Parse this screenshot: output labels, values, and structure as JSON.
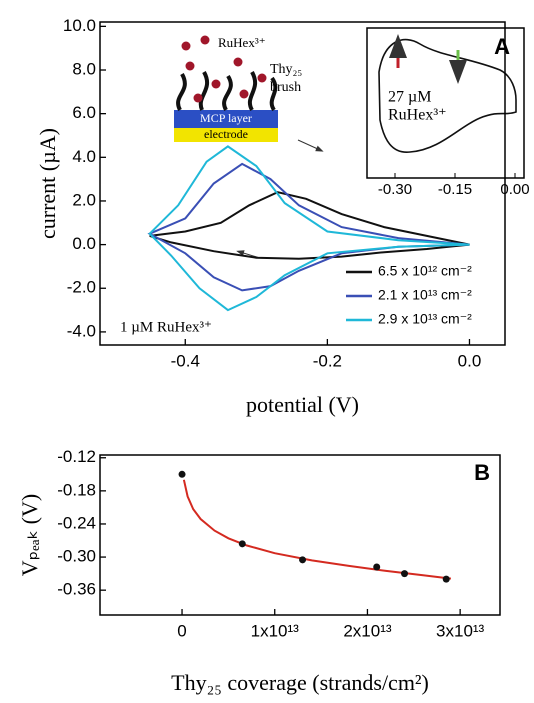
{
  "chart_data": [
    {
      "type": "line",
      "xlabel": "potential (V)",
      "ylabel": "current (µA)",
      "xlim": [
        -0.52,
        0.05
      ],
      "ylim": [
        -4.6,
        10.2
      ],
      "xticks": [
        {
          "value": -0.4,
          "label": "-0.4"
        },
        {
          "value": -0.2,
          "label": "-0.2"
        },
        {
          "value": 0,
          "label": "0.0"
        }
      ],
      "yticks": [
        {
          "value": -4,
          "label": "-4.0"
        },
        {
          "value": -2,
          "label": "-2.0"
        },
        {
          "value": 0,
          "label": "0.0"
        },
        {
          "value": 2,
          "label": "2.0"
        },
        {
          "value": 4,
          "label": "4.0"
        },
        {
          "value": 6,
          "label": "6.0"
        },
        {
          "value": 8,
          "label": "8.0"
        },
        {
          "value": 10,
          "label": "10.0"
        }
      ],
      "series": [
        {
          "name": "6.5 x 10¹² cm⁻²",
          "color": "#111111",
          "x": [
            -0.45,
            -0.4,
            -0.35,
            -0.31,
            -0.27,
            -0.23,
            -0.18,
            -0.12,
            -0.06,
            0.0,
            -0.06,
            -0.12,
            -0.18,
            -0.24,
            -0.3,
            -0.36,
            -0.42,
            -0.45
          ],
          "y": [
            0.4,
            0.6,
            1.0,
            1.8,
            2.4,
            2.1,
            1.4,
            0.8,
            0.4,
            0.0,
            -0.2,
            -0.35,
            -0.55,
            -0.65,
            -0.6,
            -0.3,
            0.1,
            0.4
          ]
        },
        {
          "name": "2.1 x 10¹³ cm⁻²",
          "color": "#3a4fb5",
          "x": [
            -0.45,
            -0.4,
            -0.36,
            -0.32,
            -0.28,
            -0.24,
            -0.18,
            -0.1,
            0.0,
            -0.1,
            -0.18,
            -0.24,
            -0.28,
            -0.32,
            -0.36,
            -0.4,
            -0.45
          ],
          "y": [
            0.5,
            1.2,
            2.8,
            3.7,
            3.0,
            1.8,
            0.8,
            0.3,
            0.0,
            -0.1,
            -0.4,
            -1.2,
            -1.9,
            -2.1,
            -1.5,
            -0.4,
            0.5
          ]
        },
        {
          "name": "2.9 x 10¹³ cm⁻²",
          "color": "#1fb8d8",
          "x": [
            -0.45,
            -0.41,
            -0.37,
            -0.34,
            -0.3,
            -0.26,
            -0.2,
            -0.1,
            0.0,
            -0.1,
            -0.2,
            -0.26,
            -0.3,
            -0.34,
            -0.38,
            -0.42,
            -0.45
          ],
          "y": [
            0.5,
            1.8,
            3.8,
            4.5,
            3.6,
            1.9,
            0.6,
            0.2,
            0.0,
            -0.1,
            -0.4,
            -1.4,
            -2.4,
            -3.0,
            -2.0,
            -0.5,
            0.5
          ]
        }
      ],
      "annotations": [
        "1 µM RuHex³⁺",
        "RuHex³⁺",
        "Thy₂₅",
        "brush",
        "MCP layer",
        "electrode"
      ],
      "inset": {
        "label": "A",
        "annotation": [
          "27 µM",
          "RuHex³⁺"
        ],
        "xlim": [
          -0.37,
          0.0225
        ],
        "xticks": [
          {
            "value": -0.3,
            "label": "-0.30"
          },
          {
            "value": -0.15,
            "label": "-0.15"
          },
          {
            "value": 0,
            "label": "0.00"
          }
        ]
      }
    },
    {
      "type": "scatter",
      "label": "B",
      "xlabel": "Thy₂₅ coverage (strands/cm²)",
      "ylabel": "Vₚₑₐₖ (V)",
      "xlim": [
        -8850000000000.0,
        34300000000000.0
      ],
      "ylim": [
        -0.405,
        -0.115
      ],
      "xticks": [
        0,
        {
          "value": 10000000000000.0,
          "label": "1x10¹³"
        },
        {
          "value": 20000000000000.0,
          "label": "2x10¹³"
        },
        {
          "value": 30000000000000.0,
          "label": "3x10¹³"
        }
      ],
      "yticks": [
        -0.36,
        {
          "value": -0.3,
          "label": "-0.30"
        },
        -0.24,
        -0.18,
        -0.12
      ],
      "x": [
        0,
        6500000000000.0,
        13000000000000.0,
        21000000000000.0,
        24000000000000.0,
        28500000000000.0
      ],
      "values": [
        -0.15,
        -0.276,
        -0.305,
        -0.318,
        -0.33,
        -0.34
      ],
      "color": "#111111",
      "fit": {
        "color": "#d42a20",
        "x": [
          200000000000.0,
          600000000000.0,
          1200000000000.0,
          2000000000000.0,
          3500000000000.0,
          5000000000000.0,
          7000000000000.0,
          10000000000000.0,
          14000000000000.0,
          18000000000000.0,
          22000000000000.0,
          26000000000000.0,
          29000000000000.0
        ],
        "y": [
          -0.16,
          -0.19,
          -0.213,
          -0.231,
          -0.252,
          -0.266,
          -0.279,
          -0.293,
          -0.306,
          -0.316,
          -0.325,
          -0.333,
          -0.339
        ]
      }
    }
  ]
}
